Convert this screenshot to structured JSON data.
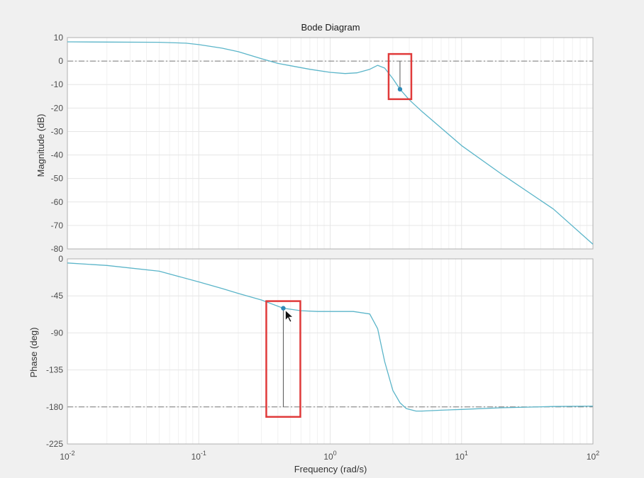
{
  "figure": {
    "title": "Bode Diagram",
    "xlabel": "Frequency  (rad/s)",
    "colors": {
      "background": "#f0f0f0",
      "plot_area": "#ffffff",
      "curve": "#5bb5c9",
      "marker": "#2e8bb8",
      "highlight_box": "#e03a3a",
      "grid": "#e6e6e6",
      "reference_line": "#7a7a7a"
    }
  },
  "chart_data": [
    {
      "type": "line",
      "name": "magnitude",
      "ylabel": "Magnitude (dB)",
      "xscale": "log",
      "xlim": [
        0.01,
        100
      ],
      "ylim": [
        -80,
        10
      ],
      "yticks": [
        10,
        0,
        -10,
        -20,
        -30,
        -40,
        -50,
        -60,
        -70,
        -80
      ],
      "grid": true,
      "reference_lines": [
        0
      ],
      "series": [
        {
          "x": [
            0.01,
            0.02,
            0.05,
            0.08,
            0.1,
            0.15,
            0.2,
            0.3,
            0.4,
            0.5,
            0.7,
            1.0,
            1.3,
            1.6,
            2.0,
            2.3,
            2.6,
            3.0,
            3.4,
            4.0,
            5.0,
            7.0,
            10,
            20,
            50,
            100
          ],
          "y": [
            8.2,
            8.1,
            8.0,
            7.6,
            7.0,
            5.5,
            4.0,
            1.0,
            -1.0,
            -2.0,
            -3.5,
            -4.8,
            -5.3,
            -5.0,
            -3.5,
            -1.8,
            -3.0,
            -7.5,
            -12.0,
            -16.5,
            -21.5,
            -28.5,
            -36.0,
            -48.0,
            -63.0,
            -78.0
          ]
        }
      ],
      "datatip": {
        "x": 3.4,
        "y": -12.0,
        "reference": 0
      }
    },
    {
      "type": "line",
      "name": "phase",
      "ylabel": "Phase (deg)",
      "xscale": "log",
      "xlim": [
        0.01,
        100
      ],
      "ylim": [
        -225,
        0
      ],
      "yticks": [
        0,
        -45,
        -90,
        -135,
        -180,
        -225
      ],
      "grid": true,
      "reference_lines": [
        -180
      ],
      "series": [
        {
          "x": [
            0.01,
            0.02,
            0.05,
            0.1,
            0.15,
            0.2,
            0.3,
            0.44,
            0.6,
            0.8,
            1.0,
            1.5,
            2.0,
            2.3,
            2.6,
            3.0,
            3.4,
            3.8,
            4.5,
            5.0,
            7.0,
            10,
            20,
            50,
            100
          ],
          "y": [
            -5,
            -8,
            -15,
            -28,
            -36,
            -42,
            -50,
            -60,
            -63,
            -64,
            -64,
            -64,
            -67,
            -85,
            -125,
            -160,
            -175,
            -182,
            -185,
            -185,
            -184,
            -183,
            -181,
            -179.5,
            -179
          ]
        }
      ],
      "datatip": {
        "x": 0.44,
        "y": -60,
        "reference": -180
      }
    }
  ],
  "xaxis": {
    "ticks": [
      {
        "base": "10",
        "exp": "-2"
      },
      {
        "base": "10",
        "exp": "-1"
      },
      {
        "base": "10",
        "exp": "0"
      },
      {
        "base": "10",
        "exp": "1"
      },
      {
        "base": "10",
        "exp": "2"
      }
    ]
  }
}
